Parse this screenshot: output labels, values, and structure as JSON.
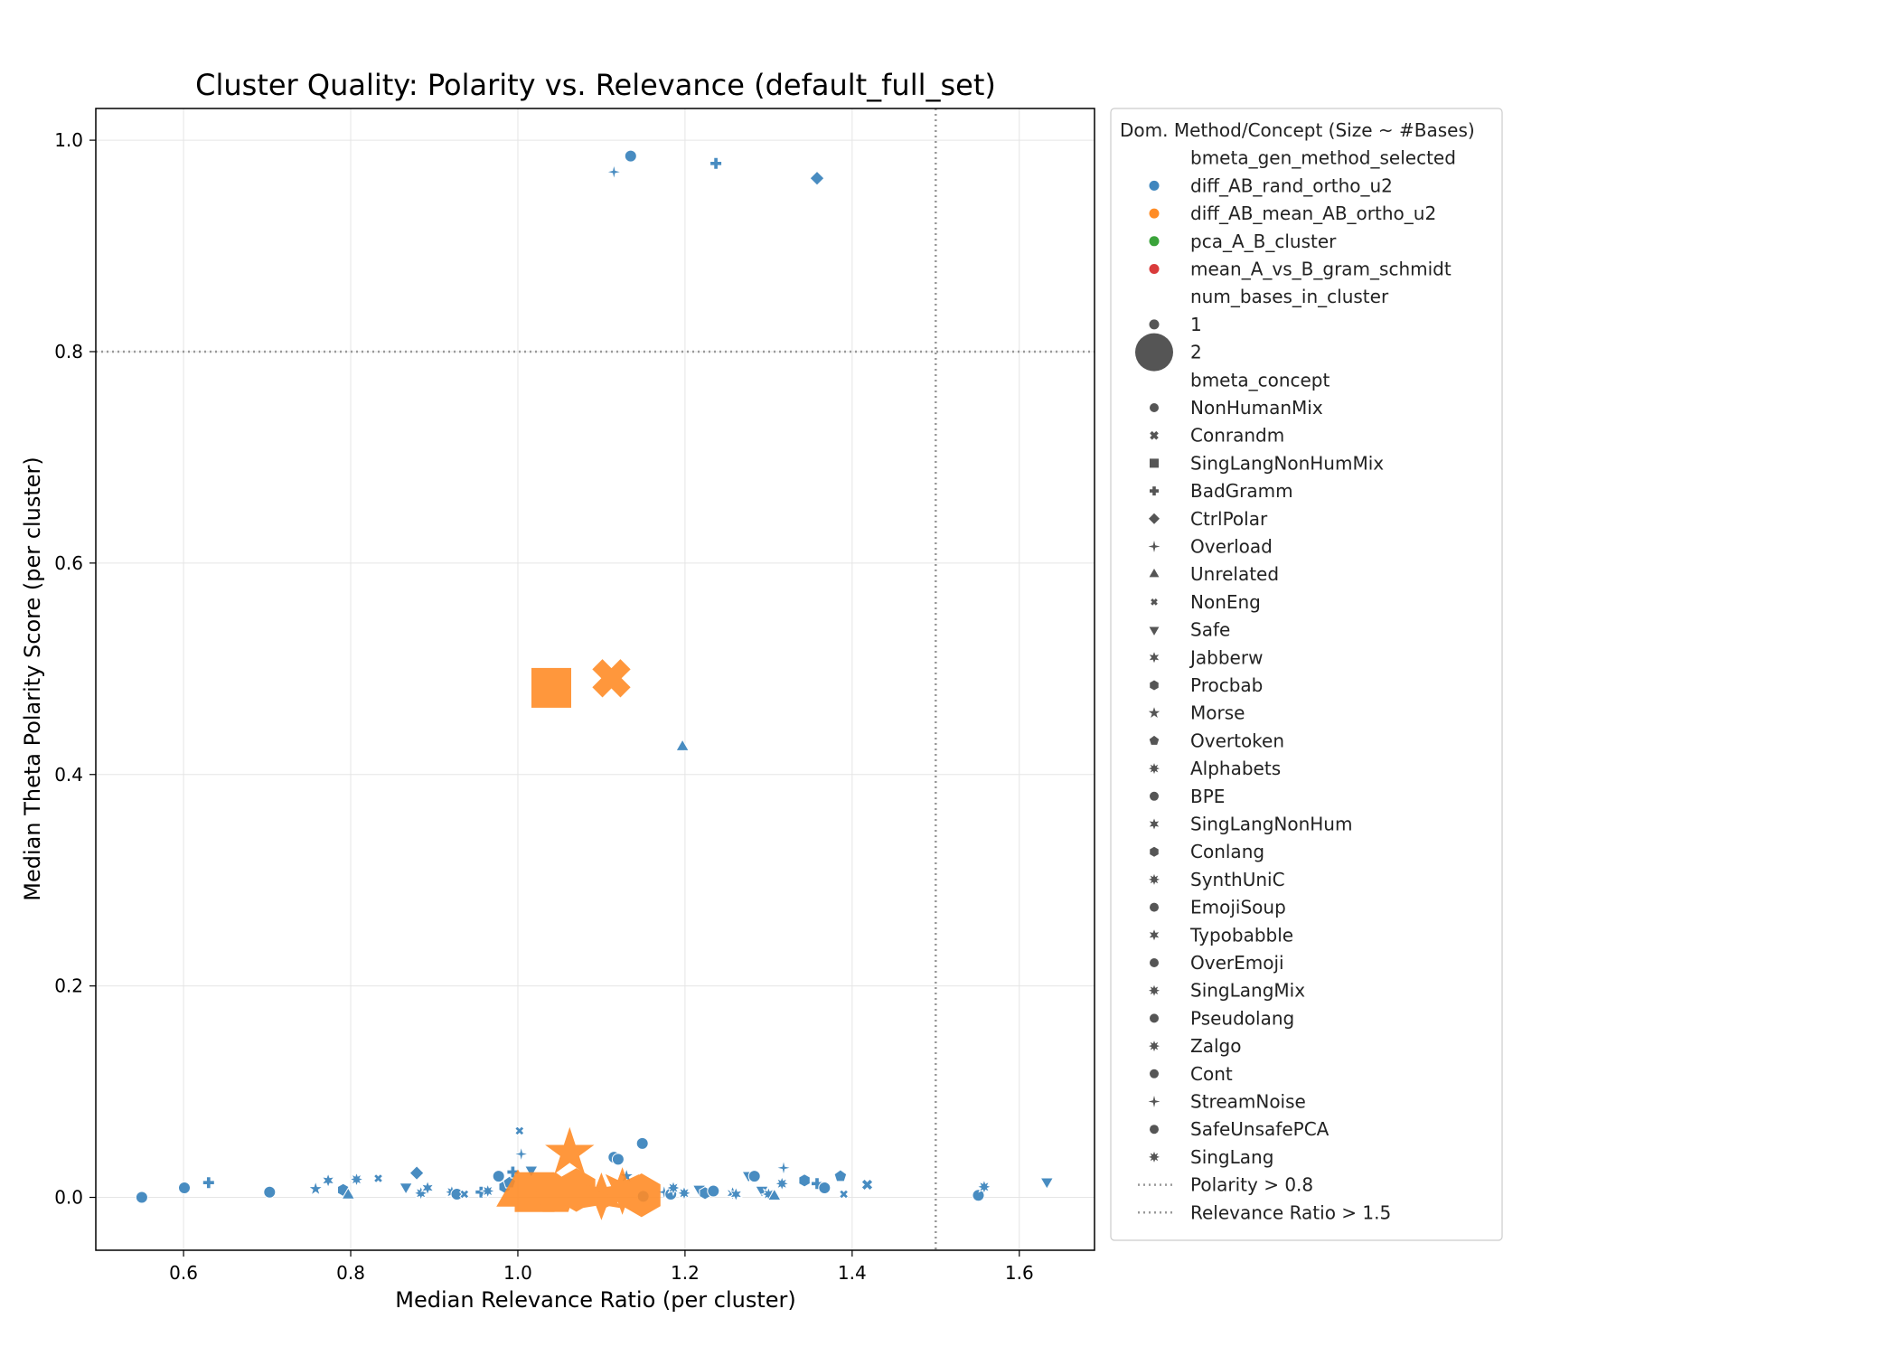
{
  "chart_data": {
    "type": "scatter",
    "title": "Cluster Quality: Polarity vs. Relevance (default_full_set)",
    "xlabel": "Median Relevance Ratio (per cluster)",
    "ylabel": "Median Theta Polarity Score (per cluster)",
    "xlim": [
      0.495,
      1.69
    ],
    "ylim": [
      -0.05,
      1.03
    ],
    "xticks": [
      "0.6",
      "0.8",
      "1.0",
      "1.2",
      "1.4",
      "1.6"
    ],
    "yticks": [
      "0.0",
      "0.2",
      "0.4",
      "0.6",
      "0.8",
      "1.0"
    ],
    "grid": true,
    "colors": {
      "diff_AB_rand_ortho_u2": "#3f86be",
      "diff_AB_mean_AB_ortho_u2": "#ff8c26",
      "pca_A_B_cluster": "#3aa33a",
      "mean_A_vs_B_gram_schmidt": "#d93b3b",
      "reference_line": "#999999",
      "grid": "#e5e5e5"
    },
    "reference_lines": [
      {
        "orientation": "horizontal",
        "value": 0.8,
        "label": "Polarity > 0.8"
      },
      {
        "orientation": "vertical",
        "value": 1.5,
        "label": "Relevance Ratio > 1.5"
      }
    ],
    "legend": {
      "placement": "outside-right",
      "title": "Dom. Method/Concept (Size ~ #Bases)",
      "hue_title": "bmeta_gen_method_selected",
      "hue_entries": [
        "diff_AB_rand_ortho_u2",
        "diff_AB_mean_AB_ortho_u2",
        "pca_A_B_cluster",
        "mean_A_vs_B_gram_schmidt"
      ],
      "size_title": "num_bases_in_cluster",
      "size_entries": [
        "1",
        "2"
      ],
      "style_title": "bmeta_concept",
      "style_entries": [
        {
          "name": "NonHumanMix",
          "marker": "circle"
        },
        {
          "name": "Conrandm",
          "marker": "x"
        },
        {
          "name": "SingLangNonHumMix",
          "marker": "square"
        },
        {
          "name": "BadGramm",
          "marker": "plus"
        },
        {
          "name": "CtrlPolar",
          "marker": "diamond"
        },
        {
          "name": "Overload",
          "marker": "star4"
        },
        {
          "name": "Unrelated",
          "marker": "triangle-up"
        },
        {
          "name": "NonEng",
          "marker": "xsmall"
        },
        {
          "name": "Safe",
          "marker": "triangle-down"
        },
        {
          "name": "Jabberw",
          "marker": "star6"
        },
        {
          "name": "Procbab",
          "marker": "hexagon"
        },
        {
          "name": "Morse",
          "marker": "star5"
        },
        {
          "name": "Overtoken",
          "marker": "pentagon"
        },
        {
          "name": "Alphabets",
          "marker": "star8"
        },
        {
          "name": "BPE",
          "marker": "circle"
        },
        {
          "name": "SingLangNonHum",
          "marker": "star6"
        },
        {
          "name": "Conlang",
          "marker": "hexagon"
        },
        {
          "name": "SynthUniC",
          "marker": "star8"
        },
        {
          "name": "EmojiSoup",
          "marker": "circle"
        },
        {
          "name": "Typobabble",
          "marker": "star6"
        },
        {
          "name": "OverEmoji",
          "marker": "circle"
        },
        {
          "name": "SingLangMix",
          "marker": "star8"
        },
        {
          "name": "Pseudolang",
          "marker": "circle"
        },
        {
          "name": "Zalgo",
          "marker": "star8"
        },
        {
          "name": "Cont",
          "marker": "circle"
        },
        {
          "name": "StreamNoise",
          "marker": "star4"
        },
        {
          "name": "SafeUnsafePCA",
          "marker": "circle"
        },
        {
          "name": "SingLang",
          "marker": "star8"
        }
      ],
      "line_entries": [
        "Polarity > 0.8",
        "Relevance Ratio > 1.5"
      ]
    },
    "series": [
      {
        "method": "diff_AB_rand_ortho_u2",
        "num_bases": 1,
        "points": [
          {
            "x": 1.135,
            "y": 0.985,
            "concept": "NonHumanMix"
          },
          {
            "x": 1.115,
            "y": 0.97,
            "concept": "Overload"
          },
          {
            "x": 1.237,
            "y": 0.978,
            "concept": "BadGramm"
          },
          {
            "x": 1.358,
            "y": 0.964,
            "concept": "CtrlPolar"
          },
          {
            "x": 1.197,
            "y": 0.426,
            "concept": "Unrelated"
          },
          {
            "x": 0.55,
            "y": 0.0,
            "concept": "NonHumanMix"
          },
          {
            "x": 0.601,
            "y": 0.009,
            "concept": "BPE"
          },
          {
            "x": 0.63,
            "y": 0.014,
            "concept": "BadGramm"
          },
          {
            "x": 0.703,
            "y": 0.005,
            "concept": "Cont"
          },
          {
            "x": 0.758,
            "y": 0.008,
            "concept": "Morse"
          },
          {
            "x": 0.773,
            "y": 0.016,
            "concept": "Jabberw"
          },
          {
            "x": 0.791,
            "y": 0.007,
            "concept": "Conlang"
          },
          {
            "x": 0.797,
            "y": 0.002,
            "concept": "Unrelated"
          },
          {
            "x": 0.807,
            "y": 0.017,
            "concept": "SynthUniC"
          },
          {
            "x": 0.833,
            "y": 0.018,
            "concept": "NonEng"
          },
          {
            "x": 0.866,
            "y": 0.01,
            "concept": "Safe"
          },
          {
            "x": 0.879,
            "y": 0.023,
            "concept": "CtrlPolar"
          },
          {
            "x": 0.884,
            "y": 0.004,
            "concept": "Alphabets"
          },
          {
            "x": 0.892,
            "y": 0.009,
            "concept": "Typobabble"
          },
          {
            "x": 0.921,
            "y": 0.005,
            "concept": "Zalgo"
          },
          {
            "x": 0.927,
            "y": 0.003,
            "concept": "Pseudolang"
          },
          {
            "x": 0.936,
            "y": 0.003,
            "concept": "NonEng"
          },
          {
            "x": 0.956,
            "y": 0.005,
            "concept": "BadGramm"
          },
          {
            "x": 0.964,
            "y": 0.006,
            "concept": "SingLangMix"
          },
          {
            "x": 0.977,
            "y": 0.02,
            "concept": "NonHumanMix"
          },
          {
            "x": 0.984,
            "y": 0.01,
            "concept": "Procbab"
          },
          {
            "x": 0.99,
            "y": 0.014,
            "concept": "Overtoken"
          },
          {
            "x": 0.994,
            "y": 0.024,
            "concept": "BadGramm"
          },
          {
            "x": 1.002,
            "y": 0.063,
            "concept": "NonEng"
          },
          {
            "x": 1.004,
            "y": 0.041,
            "concept": "Overload"
          },
          {
            "x": 1.016,
            "y": 0.026,
            "concept": "Safe"
          },
          {
            "x": 1.115,
            "y": 0.038,
            "concept": "NonHumanMix"
          },
          {
            "x": 1.12,
            "y": 0.036,
            "concept": "EmojiSoup"
          },
          {
            "x": 1.13,
            "y": 0.02,
            "concept": "Morse"
          },
          {
            "x": 1.149,
            "y": 0.051,
            "concept": "OverEmoji"
          },
          {
            "x": 1.15,
            "y": 0.001,
            "concept": "Cont"
          },
          {
            "x": 1.175,
            "y": 0.005,
            "concept": "StreamNoise"
          },
          {
            "x": 1.183,
            "y": 0.003,
            "concept": "NonHumanMix"
          },
          {
            "x": 1.186,
            "y": 0.009,
            "concept": "SingLang"
          },
          {
            "x": 1.199,
            "y": 0.004,
            "concept": "Alphabets"
          },
          {
            "x": 1.217,
            "y": 0.008,
            "concept": "Safe"
          },
          {
            "x": 1.224,
            "y": 0.004,
            "concept": "Procbab"
          },
          {
            "x": 1.234,
            "y": 0.006,
            "concept": "SafeUnsafePCA"
          },
          {
            "x": 1.257,
            "y": 0.004,
            "concept": "Typobabble"
          },
          {
            "x": 1.261,
            "y": 0.003,
            "concept": "Jabberw"
          },
          {
            "x": 1.276,
            "y": 0.021,
            "concept": "Safe"
          },
          {
            "x": 1.283,
            "y": 0.02,
            "concept": "NonHumanMix"
          },
          {
            "x": 1.292,
            "y": 0.007,
            "concept": "Safe"
          },
          {
            "x": 1.3,
            "y": 0.003,
            "concept": "Zalgo"
          },
          {
            "x": 1.307,
            "y": 0.001,
            "concept": "Unrelated"
          },
          {
            "x": 1.316,
            "y": 0.013,
            "concept": "Alphabets"
          },
          {
            "x": 1.318,
            "y": 0.028,
            "concept": "Overload"
          },
          {
            "x": 1.343,
            "y": 0.016,
            "concept": "Procbab"
          },
          {
            "x": 1.358,
            "y": 0.013,
            "concept": "BadGramm"
          },
          {
            "x": 1.367,
            "y": 0.009,
            "concept": "NonHumanMix"
          },
          {
            "x": 1.386,
            "y": 0.02,
            "concept": "Overtoken"
          },
          {
            "x": 1.39,
            "y": 0.003,
            "concept": "NonEng"
          },
          {
            "x": 1.418,
            "y": 0.012,
            "concept": "Conrandm"
          },
          {
            "x": 1.551,
            "y": 0.002,
            "concept": "NonHumanMix"
          },
          {
            "x": 1.558,
            "y": 0.01,
            "concept": "SingLangMix"
          },
          {
            "x": 1.633,
            "y": 0.015,
            "concept": "Safe"
          }
        ]
      },
      {
        "method": "diff_AB_mean_AB_ortho_u2",
        "num_bases": 2,
        "points": [
          {
            "x": 1.04,
            "y": 0.482,
            "concept": "SingLangNonHumMix"
          },
          {
            "x": 1.112,
            "y": 0.491,
            "concept": "Conrandm"
          },
          {
            "x": 1.062,
            "y": 0.042,
            "concept": "Morse"
          },
          {
            "x": 1.0,
            "y": 0.003,
            "concept": "Unrelated"
          },
          {
            "x": 1.02,
            "y": 0.005,
            "concept": "SingLangNonHumMix"
          },
          {
            "x": 1.045,
            "y": 0.003,
            "concept": "Overtoken"
          },
          {
            "x": 1.07,
            "y": 0.007,
            "concept": "Procbab"
          },
          {
            "x": 1.1,
            "y": 0.001,
            "concept": "Jabberw"
          },
          {
            "x": 1.125,
            "y": 0.006,
            "concept": "Alphabets"
          },
          {
            "x": 1.148,
            "y": 0.002,
            "concept": "Procbab"
          }
        ]
      }
    ]
  }
}
